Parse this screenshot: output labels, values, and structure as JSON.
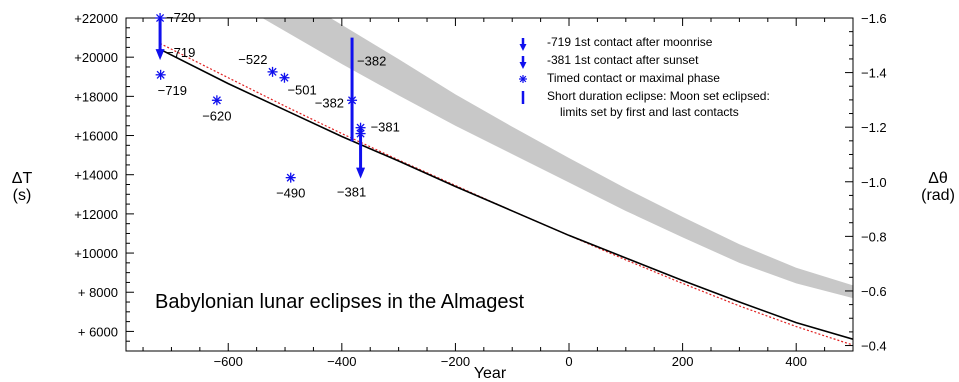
{
  "chart_data": {
    "type": "scatter",
    "title": "Babylonian lunar eclipses in the Almagest",
    "xlabel": "Year",
    "ylabel_left": "ΔT",
    "ylabel_left_unit": "(s)",
    "ylabel_right": "Δθ",
    "ylabel_right_unit": "(rad)",
    "xlim": [
      -780,
      500
    ],
    "ylim_left": [
      5000,
      22000
    ],
    "ylim_right": [
      -0.38,
      -1.6
    ],
    "x_ticks": [
      -600,
      -400,
      -200,
      0,
      200,
      400
    ],
    "x_tick_labels": [
      "−600",
      "−400",
      "−200",
      "0",
      "200",
      "400"
    ],
    "y_left_ticks": [
      6000,
      8000,
      10000,
      12000,
      14000,
      16000,
      18000,
      20000,
      22000
    ],
    "y_left_tick_labels": [
      "+ 6000",
      "+ 8000",
      "+10000",
      "+12000",
      "+14000",
      "+16000",
      "+18000",
      "+20000",
      "+22000"
    ],
    "y_right_ticks": [
      -0.4,
      -0.6,
      -0.8,
      -1.0,
      -1.2,
      -1.4,
      -1.6
    ],
    "y_right_tick_labels": [
      "−0.4",
      "−0.6",
      "−0.8",
      "−1.0",
      "−1.2",
      "−1.4",
      "−1.6"
    ],
    "points": [
      {
        "x": -720,
        "y": 22000,
        "label": "−720"
      },
      {
        "x": -719,
        "y": 19100,
        "label": "−719"
      },
      {
        "x": -620,
        "y": 17800,
        "label": "−620"
      },
      {
        "x": -522,
        "y": 19250,
        "label": "−522"
      },
      {
        "x": -501,
        "y": 18950,
        "label": "−501"
      },
      {
        "x": -490,
        "y": 13850,
        "label": "−490"
      },
      {
        "x": -382,
        "y": 17800,
        "label": "−382"
      },
      {
        "x": -367,
        "y": 16400,
        "label": "−381"
      },
      {
        "x": -367,
        "y": 16100,
        "label": ""
      }
    ],
    "arrows": [
      {
        "x": -720,
        "from": 22000,
        "to": 19850,
        "label": "−719"
      },
      {
        "x": -367,
        "from": 16400,
        "to": 13800,
        "label": "−381"
      }
    ],
    "bars": [
      {
        "x": -382,
        "from": 21000,
        "to": 15700,
        "label": "−382"
      }
    ],
    "curve_solid": [
      {
        "x": -720,
        "y": 20400
      },
      {
        "x": -600,
        "y": 18650
      },
      {
        "x": -500,
        "y": 17300
      },
      {
        "x": -400,
        "y": 15950
      },
      {
        "x": -300,
        "y": 14700
      },
      {
        "x": -200,
        "y": 13400
      },
      {
        "x": -100,
        "y": 12150
      },
      {
        "x": 0,
        "y": 10900
      },
      {
        "x": 100,
        "y": 9750
      },
      {
        "x": 200,
        "y": 8600
      },
      {
        "x": 300,
        "y": 7500
      },
      {
        "x": 400,
        "y": 6450
      },
      {
        "x": 500,
        "y": 5600
      }
    ],
    "curve_dotted": [
      {
        "x": -720,
        "y": 20700
      },
      {
        "x": -600,
        "y": 18950
      },
      {
        "x": -500,
        "y": 17500
      },
      {
        "x": -400,
        "y": 16100
      },
      {
        "x": -300,
        "y": 14750
      },
      {
        "x": -200,
        "y": 13450
      },
      {
        "x": -100,
        "y": 12150
      },
      {
        "x": 0,
        "y": 10900
      },
      {
        "x": 100,
        "y": 9650
      },
      {
        "x": 200,
        "y": 8450
      },
      {
        "x": 300,
        "y": 7300
      },
      {
        "x": 400,
        "y": 6250
      },
      {
        "x": 500,
        "y": 5300
      }
    ],
    "band": {
      "upper": [
        {
          "x": -540,
          "y": 22000
        },
        {
          "x": -400,
          "y": 19650
        },
        {
          "x": -300,
          "y": 18050
        },
        {
          "x": -200,
          "y": 16500
        },
        {
          "x": -100,
          "y": 15050
        },
        {
          "x": 0,
          "y": 13600
        },
        {
          "x": 100,
          "y": 12150
        },
        {
          "x": 200,
          "y": 10800
        },
        {
          "x": 300,
          "y": 9500
        },
        {
          "x": 400,
          "y": 8450
        },
        {
          "x": 500,
          "y": 7700
        }
      ],
      "lower": [
        {
          "x": -420,
          "y": 22000
        },
        {
          "x": -300,
          "y": 19900
        },
        {
          "x": -200,
          "y": 18100
        },
        {
          "x": -100,
          "y": 16450
        },
        {
          "x": 0,
          "y": 14850
        },
        {
          "x": 100,
          "y": 13300
        },
        {
          "x": 200,
          "y": 11850
        },
        {
          "x": 300,
          "y": 10450
        },
        {
          "x": 400,
          "y": 9250
        },
        {
          "x": 500,
          "y": 8350
        }
      ]
    },
    "legend": [
      "-719 1st contact after moonrise",
      "-381 1st contact after sunset",
      "Timed contact or maximal phase",
      "Short duration eclipse: Moon set eclipsed:",
      "limits set by first and last contacts"
    ],
    "legend_position": "top-right",
    "colors": {
      "markers": "#1010ee",
      "curve": "#000000",
      "dotted": "#e02020",
      "band": "#c8c8c8"
    }
  }
}
